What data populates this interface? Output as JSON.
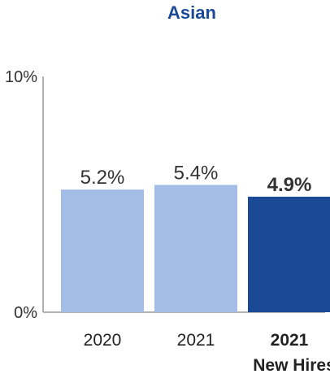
{
  "chart_data": {
    "type": "bar",
    "title": "Asian",
    "categories": [
      {
        "lines": [
          "2020"
        ],
        "highlight": false
      },
      {
        "lines": [
          "2021"
        ],
        "highlight": false
      },
      {
        "lines": [
          "2021",
          "New Hires"
        ],
        "highlight": true
      }
    ],
    "values": [
      5.2,
      5.4,
      4.9
    ],
    "value_labels": [
      "5.2%",
      "5.4%",
      "4.9%"
    ],
    "ylim": [
      0,
      10
    ],
    "yticks": [
      {
        "value": 0,
        "label": "0%"
      },
      {
        "value": 10,
        "label": "10%"
      }
    ],
    "grid": false,
    "colors": {
      "bar": "#a3bde6",
      "highlight_bar": "#1a4a96",
      "title": "#1a4a96",
      "highlight_label": "#1a4a96",
      "axis": "#999999"
    }
  }
}
